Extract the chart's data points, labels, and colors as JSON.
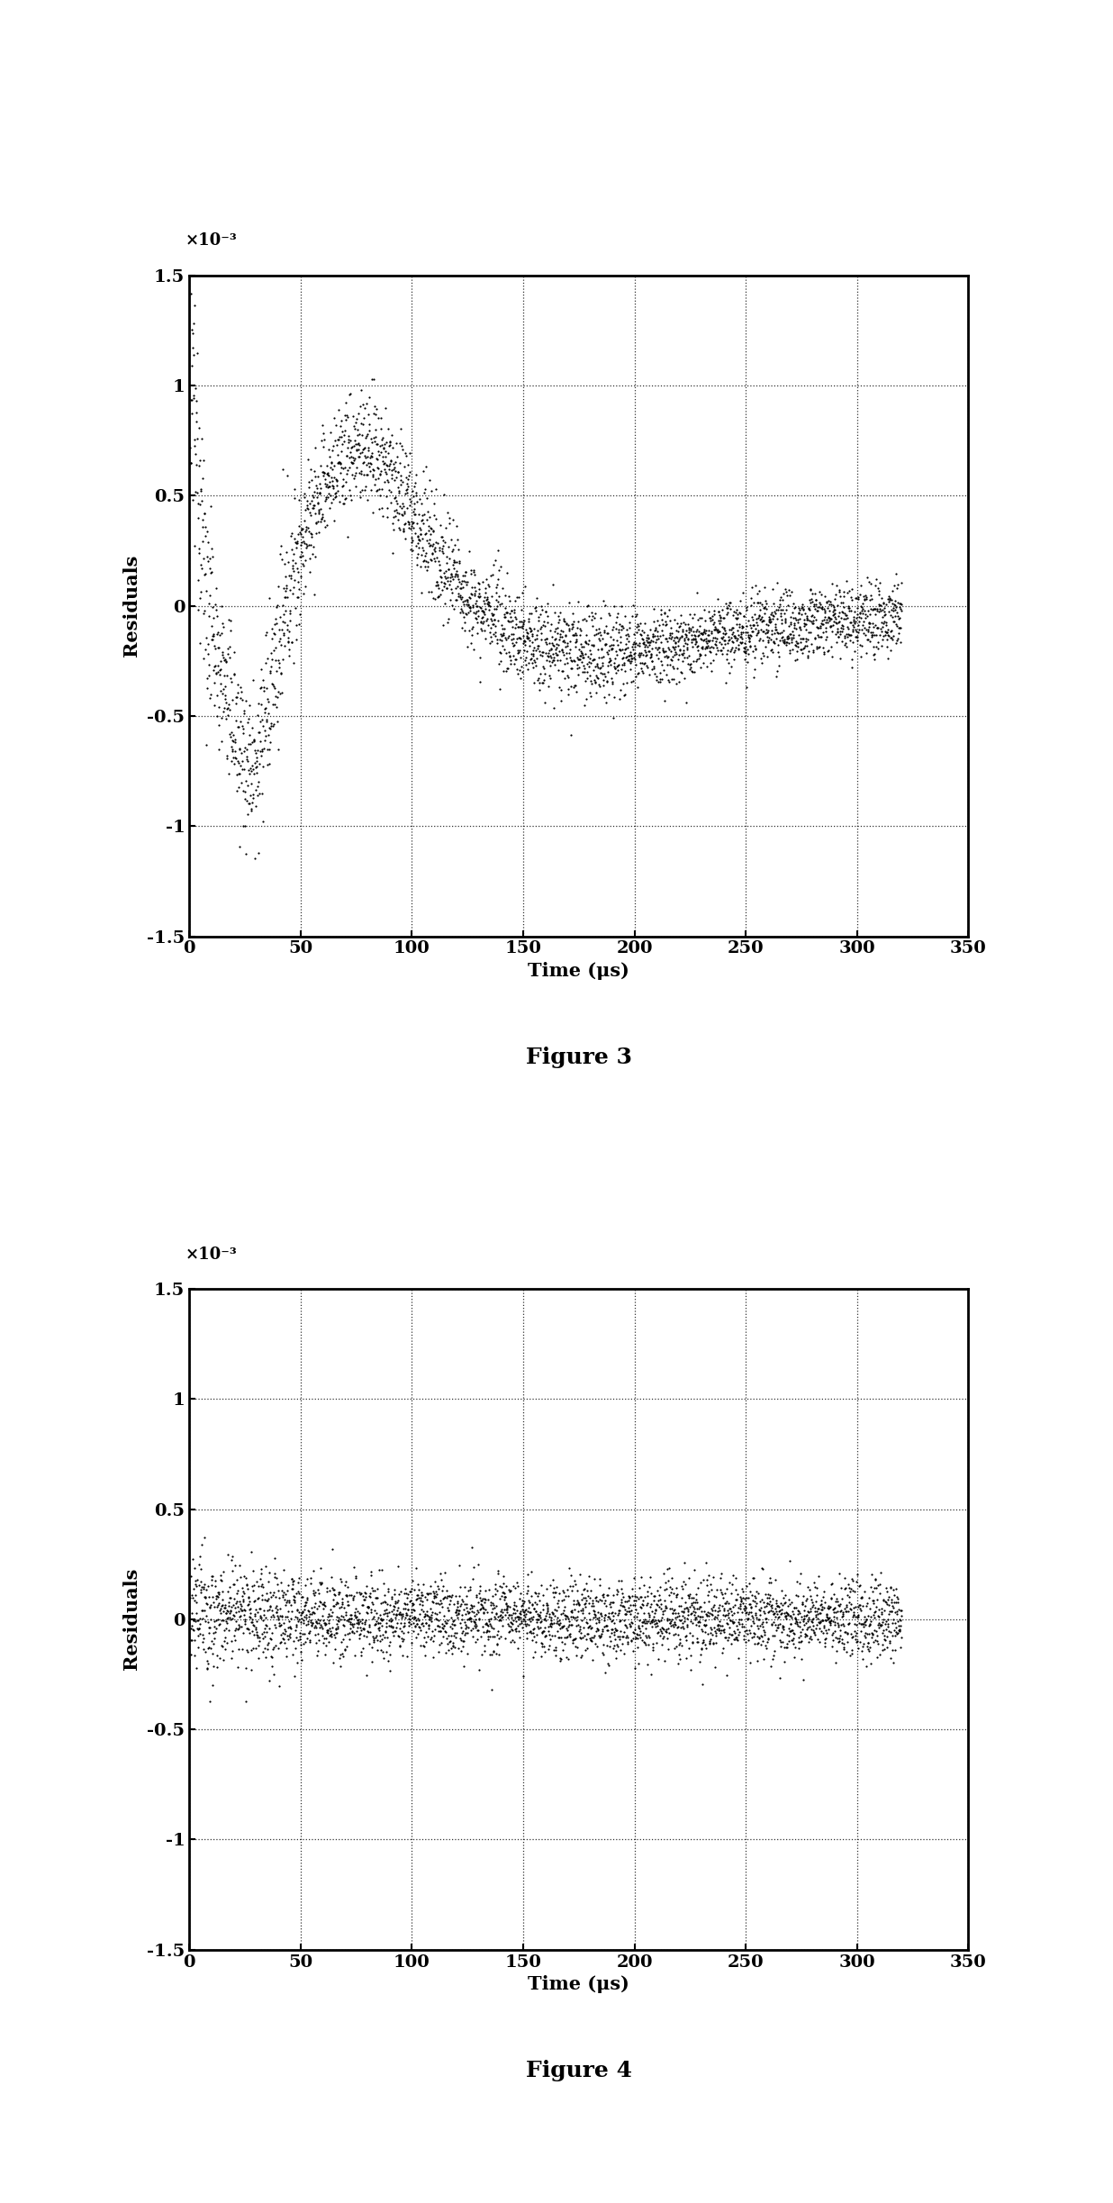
{
  "fig_width": 12.36,
  "fig_height": 24.46,
  "background_color": "#ffffff",
  "plot1": {
    "xlabel": "Time (μs)",
    "ylabel": "Residuals",
    "xlim": [
      0,
      350
    ],
    "ylim": [
      -0.0015,
      0.0015
    ],
    "yticks": [
      -0.0015,
      -0.001,
      -0.0005,
      0.0,
      0.0005,
      0.001,
      0.0015
    ],
    "ytick_labels": [
      "-1.5",
      "-1",
      "-0.5",
      "0",
      "0.5",
      "1",
      "1.5"
    ],
    "xticks": [
      0,
      50,
      100,
      150,
      200,
      250,
      300,
      350
    ],
    "scale_label": "×10⁻³",
    "caption": "Figure 3",
    "dot_color": "#000000",
    "dot_size": 2.5
  },
  "plot2": {
    "xlabel": "Time (μs)",
    "ylabel": "Residuals",
    "xlim": [
      0,
      350
    ],
    "ylim": [
      -0.0015,
      0.0015
    ],
    "yticks": [
      -0.0015,
      -0.001,
      -0.0005,
      0.0,
      0.0005,
      0.001,
      0.0015
    ],
    "ytick_labels": [
      "-1.5",
      "-1",
      "-0.5",
      "0",
      "0.5",
      "1",
      "1.5"
    ],
    "xticks": [
      0,
      50,
      100,
      150,
      200,
      250,
      300,
      350
    ],
    "scale_label": "×10⁻³",
    "caption": "Figure 4",
    "dot_color": "#000000",
    "dot_size": 2.5
  }
}
